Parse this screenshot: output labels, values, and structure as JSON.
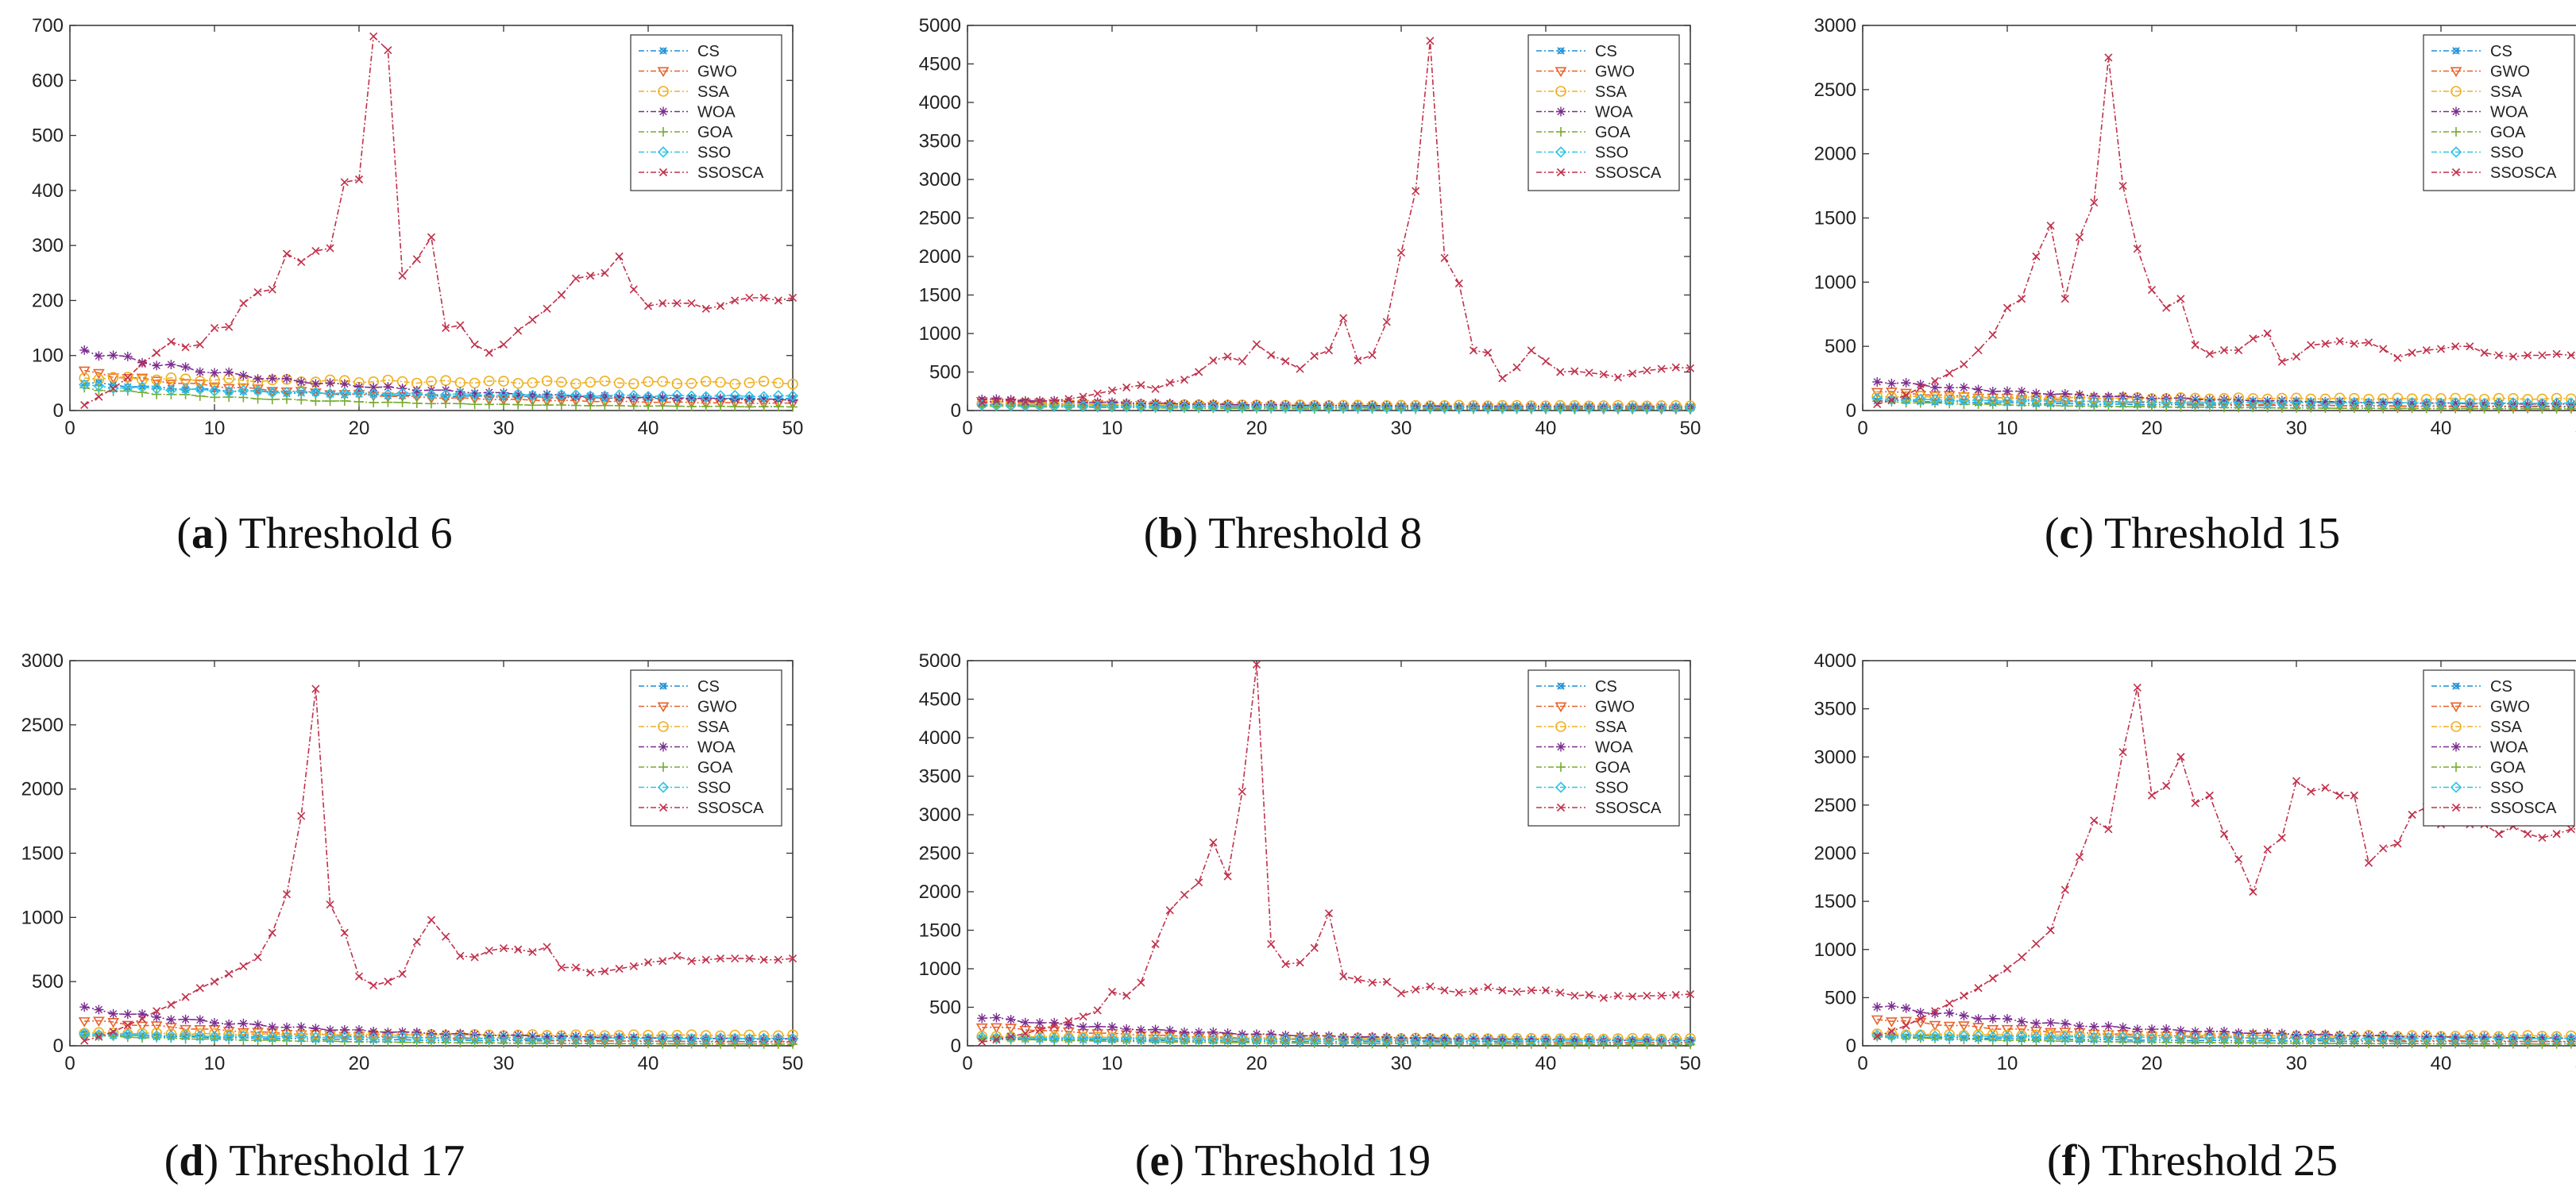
{
  "figure": {
    "title": "Convergence curves for thresholds 6, 8, 15, 17, 19, 25"
  },
  "series_styles": [
    {
      "name": "CS",
      "color": "#1a8fd6",
      "marker": "star",
      "dash": "7,3,2,3"
    },
    {
      "name": "GWO",
      "color": "#e8622c",
      "marker": "tri-down",
      "dash": "7,3,2,3"
    },
    {
      "name": "SSA",
      "color": "#f0b020",
      "marker": "circle",
      "dash": "7,3,2,3"
    },
    {
      "name": "WOA",
      "color": "#7b2d8e",
      "marker": "asterisk",
      "dash": "7,3,2,3"
    },
    {
      "name": "GOA",
      "color": "#77ac30",
      "marker": "plus",
      "dash": "7,3,2,3"
    },
    {
      "name": "SSO",
      "color": "#2ec4e6",
      "marker": "diamond",
      "dash": "7,3,2,3"
    },
    {
      "name": "SSOSCA",
      "color": "#c0304a",
      "marker": "x",
      "dash": "7,3,2,3"
    }
  ],
  "chart_data": [
    {
      "type": "line",
      "caption_letter": "a",
      "caption_text": "Threshold 6",
      "xlim": [
        0,
        50
      ],
      "ylim": [
        0,
        700
      ],
      "xticks": [
        0,
        10,
        20,
        30,
        40,
        50
      ],
      "yticks": [
        0,
        100,
        200,
        300,
        400,
        500,
        600,
        700
      ],
      "legend_labels": [
        "CS",
        "GWO",
        "SSA",
        "WOA",
        "GOA",
        "SSO",
        "SSOSCA"
      ],
      "legend_position": "top-right",
      "series": [
        {
          "name": "CS",
          "start": 50,
          "end": 20
        },
        {
          "name": "GWO",
          "start": 70,
          "end": 10
        },
        {
          "name": "SSA",
          "start": 60,
          "end": 50
        },
        {
          "name": "WOA",
          "start": 110,
          "end": 15
        },
        {
          "name": "GOA",
          "start": 40,
          "end": 5
        },
        {
          "name": "SSO",
          "start": 45,
          "end": 25
        },
        {
          "name": "SSOSCA",
          "values": [
            10,
            25,
            40,
            60,
            85,
            105,
            125,
            115,
            120,
            150,
            152,
            195,
            215,
            220,
            285,
            270,
            290,
            295,
            415,
            420,
            680,
            655,
            245,
            275,
            315,
            150,
            155,
            120,
            105,
            120,
            145,
            165,
            185,
            210,
            240,
            245,
            250,
            280,
            220,
            190,
            195,
            195,
            195,
            185,
            190,
            200,
            205,
            205,
            200,
            205
          ]
        }
      ]
    },
    {
      "type": "line",
      "caption_letter": "b",
      "caption_text": "Threshold 8",
      "xlim": [
        0,
        50
      ],
      "ylim": [
        0,
        5000
      ],
      "xticks": [
        0,
        10,
        20,
        30,
        40,
        50
      ],
      "yticks": [
        0,
        500,
        1000,
        1500,
        2000,
        2500,
        3000,
        3500,
        4000,
        4500,
        5000
      ],
      "legend_labels": [
        "CS",
        "GWO",
        "SSA",
        "WOA",
        "GOA",
        "SSO",
        "SSOSCA"
      ],
      "legend_position": "top-right",
      "series": [
        {
          "name": "CS",
          "start": 80,
          "end": 30
        },
        {
          "name": "GWO",
          "start": 120,
          "end": 20
        },
        {
          "name": "SSA",
          "start": 90,
          "end": 60
        },
        {
          "name": "WOA",
          "start": 150,
          "end": 40
        },
        {
          "name": "GOA",
          "start": 60,
          "end": 10
        },
        {
          "name": "SSO",
          "start": 70,
          "end": 35
        },
        {
          "name": "SSOSCA",
          "values": [
            100,
            120,
            130,
            110,
            115,
            130,
            150,
            180,
            220,
            260,
            300,
            330,
            280,
            360,
            400,
            500,
            650,
            700,
            640,
            860,
            720,
            640,
            540,
            710,
            780,
            1200,
            650,
            720,
            1150,
            2050,
            2850,
            4800,
            1980,
            1650,
            780,
            750,
            420,
            560,
            780,
            640,
            500,
            510,
            490,
            470,
            430,
            480,
            520,
            540,
            560,
            550
          ]
        }
      ]
    },
    {
      "type": "line",
      "caption_letter": "c",
      "caption_text": "Threshold 15",
      "xlim": [
        0,
        50
      ],
      "ylim": [
        0,
        3000
      ],
      "xticks": [
        0,
        10,
        20,
        30,
        40,
        50
      ],
      "yticks": [
        0,
        500,
        1000,
        1500,
        2000,
        2500,
        3000
      ],
      "legend_labels": [
        "CS",
        "GWO",
        "SSA",
        "WOA",
        "GOA",
        "SSO",
        "SSOSCA"
      ],
      "legend_position": "top-right",
      "series": [
        {
          "name": "CS",
          "start": 80,
          "end": 30
        },
        {
          "name": "GWO",
          "start": 150,
          "end": 20
        },
        {
          "name": "SSA",
          "start": 110,
          "end": 90
        },
        {
          "name": "WOA",
          "start": 230,
          "end": 40
        },
        {
          "name": "GOA",
          "start": 70,
          "end": 10
        },
        {
          "name": "SSO",
          "start": 90,
          "end": 55
        },
        {
          "name": "SSOSCA",
          "values": [
            50,
            80,
            120,
            180,
            230,
            290,
            360,
            470,
            590,
            800,
            870,
            1200,
            1440,
            870,
            1350,
            1620,
            2750,
            1750,
            1260,
            940,
            800,
            870,
            510,
            440,
            470,
            470,
            560,
            600,
            380,
            420,
            510,
            520,
            540,
            520,
            530,
            480,
            410,
            450,
            470,
            480,
            500,
            500,
            450,
            430,
            420,
            430,
            430,
            440,
            430,
            440
          ]
        }
      ]
    },
    {
      "type": "line",
      "caption_letter": "d",
      "caption_text": "Threshold 17",
      "xlim": [
        0,
        50
      ],
      "ylim": [
        0,
        3000
      ],
      "xticks": [
        0,
        10,
        20,
        30,
        40,
        50
      ],
      "yticks": [
        0,
        500,
        1000,
        1500,
        2000,
        2500,
        3000
      ],
      "legend_labels": [
        "CS",
        "GWO",
        "SSA",
        "WOA",
        "GOA",
        "SSO",
        "SSOSCA"
      ],
      "legend_position": "top-right",
      "series": [
        {
          "name": "CS",
          "start": 90,
          "end": 30
        },
        {
          "name": "GWO",
          "start": 200,
          "end": 20
        },
        {
          "name": "SSA",
          "start": 100,
          "end": 80
        },
        {
          "name": "WOA",
          "start": 290,
          "end": 40
        },
        {
          "name": "GOA",
          "start": 80,
          "end": 10
        },
        {
          "name": "SSO",
          "start": 90,
          "end": 55
        },
        {
          "name": "SSOSCA",
          "values": [
            40,
            70,
            110,
            160,
            210,
            270,
            320,
            380,
            450,
            500,
            560,
            620,
            690,
            880,
            1180,
            1790,
            2780,
            1100,
            880,
            540,
            470,
            500,
            560,
            810,
            980,
            850,
            700,
            690,
            740,
            760,
            750,
            730,
            770,
            610,
            610,
            570,
            580,
            600,
            620,
            650,
            660,
            700,
            660,
            670,
            680,
            680,
            680,
            670,
            670,
            680
          ]
        }
      ]
    },
    {
      "type": "line",
      "caption_letter": "e",
      "caption_text": "Threshold 19",
      "xlim": [
        0,
        50
      ],
      "ylim": [
        0,
        5000
      ],
      "xticks": [
        0,
        10,
        20,
        30,
        40,
        50
      ],
      "yticks": [
        0,
        500,
        1000,
        1500,
        2000,
        2500,
        3000,
        3500,
        4000,
        4500,
        5000
      ],
      "legend_labels": [
        "CS",
        "GWO",
        "SSA",
        "WOA",
        "GOA",
        "SSO",
        "SSOSCA"
      ],
      "legend_position": "top-right",
      "series": [
        {
          "name": "CS",
          "start": 100,
          "end": 40
        },
        {
          "name": "GWO",
          "start": 250,
          "end": 30
        },
        {
          "name": "SSA",
          "start": 120,
          "end": 90
        },
        {
          "name": "WOA",
          "start": 370,
          "end": 50
        },
        {
          "name": "GOA",
          "start": 90,
          "end": 15
        },
        {
          "name": "SSO",
          "start": 110,
          "end": 70
        },
        {
          "name": "SSOSCA",
          "values": [
            50,
            80,
            120,
            160,
            210,
            260,
            320,
            380,
            460,
            700,
            650,
            820,
            1320,
            1760,
            1960,
            2120,
            2640,
            2200,
            3300,
            4950,
            1320,
            1060,
            1080,
            1270,
            1720,
            900,
            860,
            820,
            830,
            680,
            730,
            770,
            720,
            690,
            710,
            760,
            720,
            700,
            720,
            720,
            690,
            650,
            660,
            620,
            650,
            640,
            650,
            650,
            660,
            670
          ]
        }
      ]
    },
    {
      "type": "line",
      "caption_letter": "f",
      "caption_text": "Threshold 25",
      "xlim": [
        0,
        50
      ],
      "ylim": [
        0,
        4000
      ],
      "xticks": [
        0,
        10,
        20,
        30,
        40,
        50
      ],
      "yticks": [
        0,
        500,
        1000,
        1500,
        2000,
        2500,
        3000,
        3500,
        4000
      ],
      "legend_labels": [
        "CS",
        "GWO",
        "SSA",
        "WOA",
        "GOA",
        "SSO",
        "SSOSCA"
      ],
      "legend_position": "top-right",
      "series": [
        {
          "name": "CS",
          "start": 100,
          "end": 40
        },
        {
          "name": "GWO",
          "start": 280,
          "end": 30
        },
        {
          "name": "SSA",
          "start": 120,
          "end": 100
        },
        {
          "name": "WOA",
          "start": 420,
          "end": 60
        },
        {
          "name": "GOA",
          "start": 90,
          "end": 15
        },
        {
          "name": "SSO",
          "start": 110,
          "end": 75
        },
        {
          "name": "SSOSCA",
          "values": [
            100,
            150,
            210,
            280,
            360,
            440,
            520,
            600,
            700,
            800,
            920,
            1060,
            1200,
            1620,
            1960,
            2340,
            2250,
            3050,
            3720,
            2600,
            2700,
            3000,
            2520,
            2600,
            2200,
            1940,
            1600,
            2040,
            2160,
            2750,
            2640,
            2680,
            2600,
            2600,
            1900,
            2050,
            2100,
            2400,
            2480,
            2300,
            2360,
            2300,
            2300,
            2200,
            2280,
            2200,
            2160,
            2200,
            2250,
            2260
          ]
        }
      ]
    }
  ]
}
